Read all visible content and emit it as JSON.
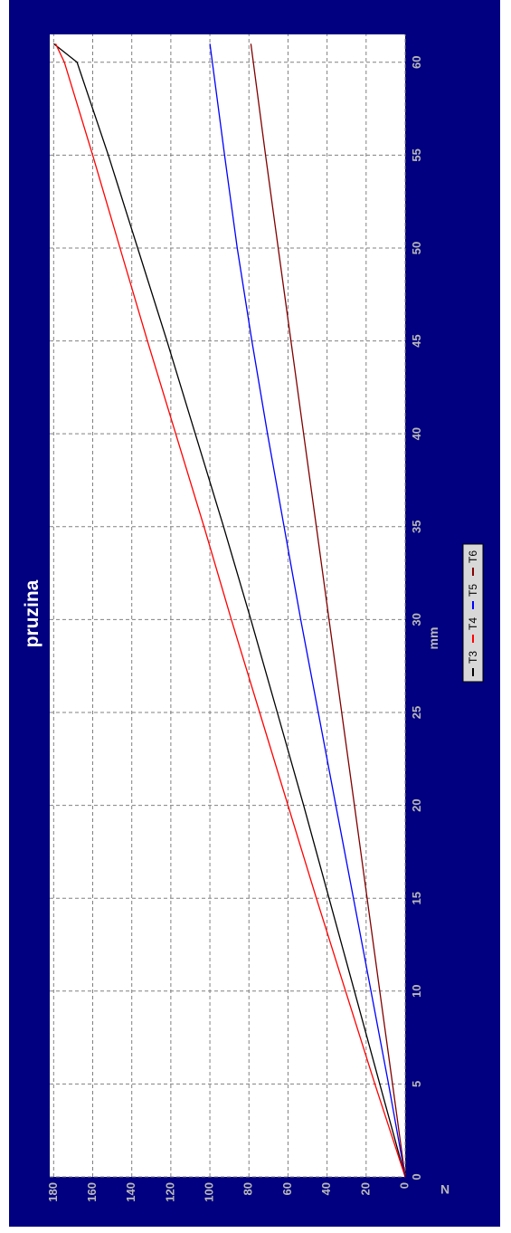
{
  "chart_data": {
    "type": "line",
    "title": "pruzina",
    "xlabel": "mm",
    "ylabel": "N",
    "xlim": [
      0,
      61.5
    ],
    "ylim": [
      0,
      182
    ],
    "xticks": [
      0,
      5,
      10,
      15,
      20,
      25,
      30,
      35,
      40,
      45,
      50,
      55,
      60
    ],
    "yticks": [
      0,
      20,
      40,
      60,
      80,
      100,
      120,
      140,
      160,
      180
    ],
    "xtick_labels": [
      "0",
      "5",
      "10",
      "15",
      "20",
      "25",
      "30",
      "35",
      "40",
      "45",
      "50",
      "55",
      "60"
    ],
    "ytick_labels": [
      "0",
      "20",
      "40",
      "60",
      "80",
      "100",
      "120",
      "140",
      "160",
      "180"
    ],
    "grid": true,
    "legend_position": "bottom",
    "orientation": "rotated 90° clockwise",
    "series": [
      {
        "name": "T3",
        "color": "#000000",
        "x": [
          0,
          5,
          10,
          15,
          20,
          25,
          30,
          35,
          40,
          45,
          50,
          55,
          60,
          61
        ],
        "y": [
          0,
          13,
          26,
          39,
          52,
          65.5,
          79,
          93,
          107.5,
          122,
          137,
          152,
          168,
          180
        ]
      },
      {
        "name": "T4",
        "color": "#ff0000",
        "x": [
          0,
          5,
          10,
          15,
          20,
          25,
          30,
          35,
          40,
          45,
          50,
          55,
          60,
          61
        ],
        "y": [
          0,
          15.5,
          30.5,
          45.5,
          60,
          74.5,
          89,
          103,
          117.5,
          132,
          146,
          160,
          174.5,
          179
        ]
      },
      {
        "name": "T5",
        "color": "#0000ff",
        "x": [
          0,
          5,
          10,
          15,
          20,
          25,
          30,
          35,
          40,
          45,
          50,
          55,
          59,
          61
        ],
        "y": [
          0,
          8.5,
          17.5,
          26.5,
          35.5,
          44.5,
          53.5,
          62,
          70.5,
          78.5,
          86,
          92.5,
          97.5,
          100
        ]
      },
      {
        "name": "T6",
        "color": "#800000",
        "x": [
          0,
          5,
          10,
          15,
          20,
          25,
          30,
          35,
          40,
          45,
          50,
          55,
          61
        ],
        "y": [
          0,
          6.5,
          13,
          19.5,
          26,
          32.5,
          39,
          45.5,
          52,
          58.5,
          65,
          71.5,
          79
        ]
      }
    ]
  }
}
